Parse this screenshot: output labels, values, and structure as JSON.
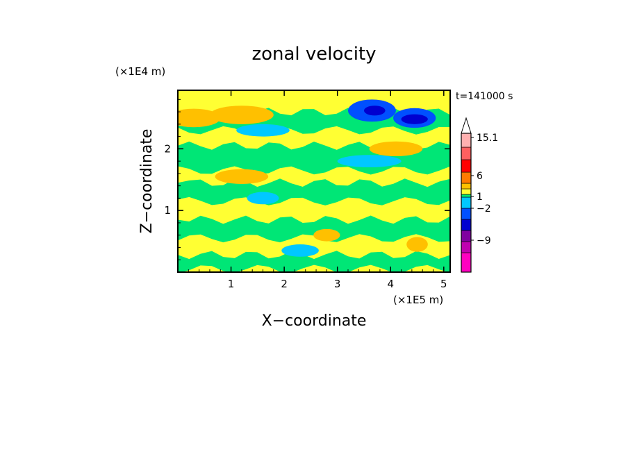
{
  "chart_data": {
    "type": "heatmap",
    "title": "zonal velocity",
    "xlabel": "X−coordinate",
    "ylabel": "Z−coordinate",
    "x_unit": "(×1E5 m)",
    "y_unit": "(×1E4 m)",
    "time_label": "t=141000 s",
    "xlim": [
      0,
      5.12
    ],
    "ylim": [
      0,
      2.95
    ],
    "x_ticks": [
      "1",
      "2",
      "3",
      "4",
      "5"
    ],
    "y_ticks": [
      "1",
      "2"
    ],
    "colorbar": {
      "label_values": [
        "15.1",
        "6",
        "1",
        "−2",
        "−9"
      ],
      "levels": [
        {
          "color": "#ff00c0"
        },
        {
          "color": "#c000b0"
        },
        {
          "color": "#8000a0"
        },
        {
          "color": "#0000d0"
        },
        {
          "color": "#0050ff"
        },
        {
          "color": "#00c8ff"
        },
        {
          "color": "#00e676"
        },
        {
          "color": "#ffff33"
        },
        {
          "color": "#ffc000"
        },
        {
          "color": "#ff7a00"
        },
        {
          "color": "#ff0000"
        },
        {
          "color": "#ff6060"
        },
        {
          "color": "#ffb0b0"
        }
      ],
      "extend_top": true
    },
    "background_color": "#ffff33",
    "features": [
      {
        "kind": "band",
        "x": [
          0.0,
          5.12
        ],
        "z": [
          0.05,
          0.28
        ],
        "level": "green"
      },
      {
        "kind": "band",
        "x": [
          0.0,
          5.12
        ],
        "z": [
          0.55,
          0.85
        ],
        "level": "green"
      },
      {
        "kind": "band",
        "x": [
          0.0,
          5.12
        ],
        "z": [
          1.15,
          1.45
        ],
        "level": "green"
      },
      {
        "kind": "band",
        "x": [
          0.0,
          5.12
        ],
        "z": [
          1.65,
          2.05
        ],
        "level": "green"
      },
      {
        "kind": "band",
        "x": [
          0.0,
          5.12
        ],
        "z": [
          2.3,
          2.6
        ],
        "level": "green"
      },
      {
        "kind": "blob",
        "cx": 3.65,
        "cz": 2.62,
        "rx": 0.45,
        "rz": 0.18,
        "level": "blue"
      },
      {
        "kind": "blob",
        "cx": 4.45,
        "cz": 2.5,
        "rx": 0.4,
        "rz": 0.16,
        "level": "blue"
      },
      {
        "kind": "blob",
        "cx": 3.7,
        "cz": 2.62,
        "rx": 0.2,
        "rz": 0.08,
        "level": "darkblue"
      },
      {
        "kind": "blob",
        "cx": 4.45,
        "cz": 2.48,
        "rx": 0.25,
        "rz": 0.08,
        "level": "darkblue"
      },
      {
        "kind": "blob",
        "cx": 0.3,
        "cz": 2.5,
        "rx": 0.5,
        "rz": 0.15,
        "level": "orange"
      },
      {
        "kind": "blob",
        "cx": 1.2,
        "cz": 2.55,
        "rx": 0.6,
        "rz": 0.15,
        "level": "orange"
      },
      {
        "kind": "blob",
        "cx": 1.2,
        "cz": 1.55,
        "rx": 0.5,
        "rz": 0.12,
        "level": "orange"
      },
      {
        "kind": "blob",
        "cx": 4.1,
        "cz": 2.0,
        "rx": 0.5,
        "rz": 0.12,
        "level": "orange"
      },
      {
        "kind": "blob",
        "cx": 2.8,
        "cz": 0.6,
        "rx": 0.25,
        "rz": 0.1,
        "level": "orange"
      },
      {
        "kind": "blob",
        "cx": 4.5,
        "cz": 0.45,
        "rx": 0.2,
        "rz": 0.12,
        "level": "orange"
      },
      {
        "kind": "blob",
        "cx": 1.6,
        "cz": 2.3,
        "rx": 0.5,
        "rz": 0.1,
        "level": "cyan"
      },
      {
        "kind": "blob",
        "cx": 3.6,
        "cz": 1.8,
        "rx": 0.6,
        "rz": 0.1,
        "level": "cyan"
      },
      {
        "kind": "blob",
        "cx": 2.3,
        "cz": 0.35,
        "rx": 0.35,
        "rz": 0.1,
        "level": "cyan"
      },
      {
        "kind": "blob",
        "cx": 1.6,
        "cz": 1.2,
        "rx": 0.3,
        "rz": 0.1,
        "level": "cyan"
      }
    ]
  }
}
